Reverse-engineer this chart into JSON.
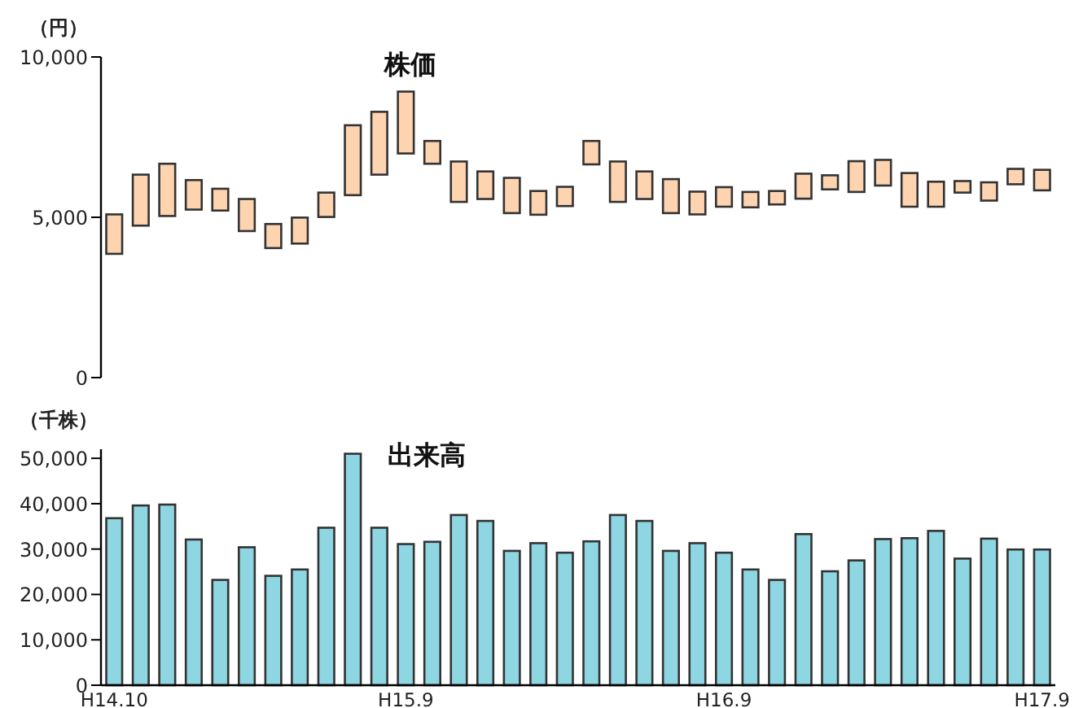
{
  "chart_data": [
    {
      "type": "bar",
      "title": "株価",
      "ylabel": "（円）",
      "tick_labels": "y",
      "color": "#fdd3b0",
      "categories": [
        null,
        null,
        null,
        null,
        null,
        null,
        null,
        null,
        null,
        null,
        null,
        null,
        null,
        null,
        null,
        null,
        null,
        null,
        null,
        null,
        null,
        null,
        null,
        null,
        null,
        null,
        null,
        null,
        null,
        null,
        null,
        null,
        null,
        null,
        null,
        null
      ],
      "base": [
        3860,
        4740,
        5040,
        5240,
        5210,
        4570,
        4040,
        4180,
        5010,
        5690,
        6330,
        6990,
        6670,
        5480,
        5570,
        5130,
        5080,
        5350,
        6650,
        5480,
        5570,
        5130,
        5090,
        5330,
        5310,
        5400,
        5580,
        5870,
        5790,
        5990,
        5330,
        5330,
        5770,
        5520,
        6030,
        5840
      ],
      "values": [
        1230,
        1590,
        1630,
        920,
        680,
        1000,
        750,
        810,
        760,
        2180,
        1960,
        1930,
        710,
        1260,
        860,
        1100,
        740,
        600,
        730,
        1260,
        860,
        1060,
        710,
        610,
        480,
        420,
        780,
        440,
        960,
        800,
        1050,
        780,
        360,
        570,
        480,
        640
      ],
      "ylim": [
        0,
        10000
      ],
      "yticks": [
        0,
        {
          "value": 5000,
          "label": "5,000"
        },
        {
          "value": 10000,
          "label": "10,000"
        }
      ]
    },
    {
      "type": "bar",
      "title": "出来高",
      "ylabel": "（千株）",
      "color": "#8dd6e2",
      "categories": [
        "H14.10",
        null,
        null,
        null,
        null,
        null,
        null,
        null,
        null,
        null,
        null,
        "H15.9",
        null,
        null,
        null,
        null,
        null,
        null,
        null,
        null,
        null,
        null,
        null,
        "H16.9",
        null,
        null,
        null,
        null,
        null,
        null,
        null,
        null,
        null,
        null,
        null,
        "H17.9"
      ],
      "values": [
        36800,
        39600,
        39800,
        32100,
        23200,
        30400,
        24100,
        25500,
        34700,
        51000,
        34700,
        31100,
        31600,
        37500,
        36200,
        29600,
        31300,
        29200,
        31700,
        37500,
        36200,
        29600,
        31300,
        29200,
        25500,
        23200,
        33300,
        25100,
        27500,
        32200,
        32400,
        34000,
        27900,
        32300,
        29900,
        29900
      ],
      "ylim": [
        0,
        52000
      ],
      "yticks": [
        0,
        {
          "value": 10000,
          "label": "10,000"
        },
        {
          "value": 20000,
          "label": "20,000"
        },
        {
          "value": 30000,
          "label": "30,000"
        },
        {
          "value": 40000,
          "label": "40,000"
        },
        {
          "value": 50000,
          "label": "50,000"
        }
      ]
    }
  ]
}
